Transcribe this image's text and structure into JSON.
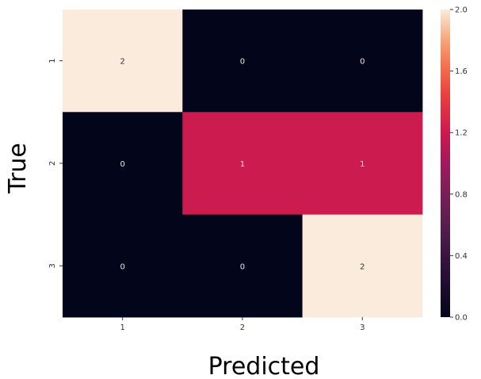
{
  "chart_data": {
    "type": "heatmap",
    "title": "",
    "xlabel": "Predicted",
    "ylabel": "True",
    "x_categories": [
      "1",
      "2",
      "3"
    ],
    "y_categories": [
      "1",
      "2",
      "3"
    ],
    "values": [
      [
        2,
        0,
        0
      ],
      [
        0,
        1,
        1
      ],
      [
        0,
        0,
        2
      ]
    ],
    "colorbar": {
      "range": [
        0.0,
        2.0
      ],
      "ticks": [
        "0.0",
        "0.4",
        "0.8",
        "1.2",
        "1.6",
        "2.0"
      ],
      "colormap": "rocket"
    },
    "colors": {
      "low": "#03051a",
      "mid": "#cb1b4f",
      "high": "#faebdd",
      "text_on_dark": "#e6e6e6",
      "text_on_light": "#333333"
    }
  }
}
